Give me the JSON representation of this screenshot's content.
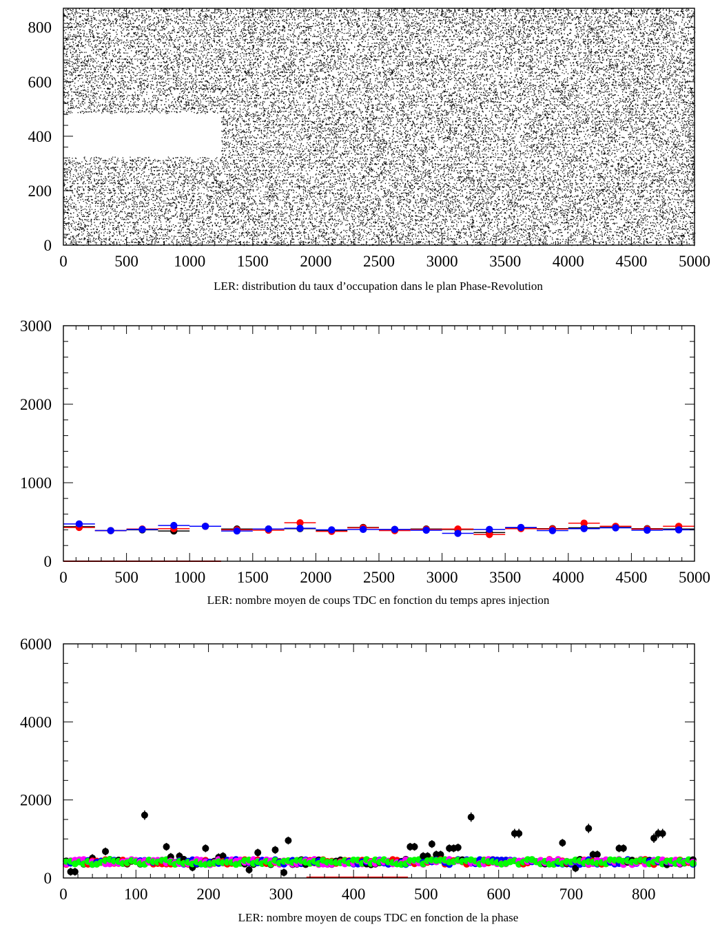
{
  "colors": {
    "black": "#000000",
    "red": "#ff0000",
    "blue": "#0000ff",
    "magenta": "#ff00ff",
    "green": "#00ff00"
  },
  "chart_data": [
    {
      "type": "scatter",
      "title": "LER: distribution du taux d’occupation dans le plan Phase-Revolution",
      "xlim": [
        0,
        5000
      ],
      "ylim": [
        0,
        870
      ],
      "xticks": [
        "0",
        "500",
        "1000",
        "1500",
        "2000",
        "2500",
        "3000",
        "3500",
        "4000",
        "4500",
        "5000"
      ],
      "yticks": [
        "0",
        "200",
        "400",
        "600",
        "800"
      ],
      "density": "dense uniform random points covering the whole plane",
      "empty_region": {
        "x": [
          0,
          1250
        ],
        "y": [
          325,
          485
        ]
      }
    },
    {
      "type": "scatter",
      "title": "LER: nombre moyen de coups TDC en fonction du temps apres injection",
      "xlim": [
        0,
        5000
      ],
      "ylim": [
        0,
        3000
      ],
      "xticks": [
        "0",
        "500",
        "1000",
        "1500",
        "2000",
        "2500",
        "3000",
        "3500",
        "4000",
        "4500",
        "5000"
      ],
      "yticks": [
        "0",
        "1000",
        "2000",
        "3000"
      ],
      "x": [
        125,
        375,
        625,
        875,
        1125,
        1375,
        1625,
        1875,
        2125,
        2375,
        2625,
        2875,
        3125,
        3375,
        3625,
        3875,
        4125,
        4375,
        4625,
        4875
      ],
      "xerr": 125,
      "series": [
        {
          "color": "black",
          "values": [
            440,
            390,
            400,
            385,
            445,
            410,
            410,
            415,
            390,
            430,
            405,
            410,
            405,
            365,
            425,
            415,
            425,
            440,
            415,
            410
          ]
        },
        {
          "color": "red",
          "values": [
            430,
            390,
            410,
            415,
            445,
            400,
            395,
            490,
            380,
            425,
            390,
            405,
            410,
            340,
            415,
            410,
            485,
            445,
            410,
            445
          ]
        },
        {
          "color": "blue",
          "values": [
            475,
            390,
            405,
            455,
            445,
            385,
            410,
            420,
            400,
            405,
            405,
            395,
            355,
            405,
            430,
            390,
            415,
            425,
            395,
            400
          ]
        }
      ],
      "baseline_segment": {
        "color": "red",
        "x": [
          0,
          1250
        ],
        "y": 0
      }
    },
    {
      "type": "scatter",
      "title": "LER: nombre moyen de coups TDC en fonction de la phase",
      "xlim": [
        0,
        870
      ],
      "ylim": [
        0,
        6000
      ],
      "xticks": [
        "0",
        "100",
        "200",
        "300",
        "400",
        "500",
        "600",
        "700",
        "800"
      ],
      "yticks": [
        "0",
        "2000",
        "4000",
        "6000"
      ],
      "bin_width": 6,
      "series_colors": [
        "black",
        "red",
        "blue",
        "magenta",
        "green"
      ],
      "typical_level": 410,
      "baseline_segment": {
        "color": "red",
        "x": [
          335,
          475
        ],
        "y": 0
      },
      "black_outliers": [
        {
          "x": 13,
          "y": 160
        },
        {
          "x": 22,
          "y": 430
        },
        {
          "x": 41,
          "y": 510
        },
        {
          "x": 59,
          "y": 680
        },
        {
          "x": 112,
          "y": 1610
        },
        {
          "x": 140,
          "y": 800
        },
        {
          "x": 149,
          "y": 540
        },
        {
          "x": 158,
          "y": 560
        },
        {
          "x": 176,
          "y": 270
        },
        {
          "x": 194,
          "y": 760
        },
        {
          "x": 212,
          "y": 530
        },
        {
          "x": 221,
          "y": 560
        },
        {
          "x": 257,
          "y": 210
        },
        {
          "x": 266,
          "y": 650
        },
        {
          "x": 293,
          "y": 720
        },
        {
          "x": 302,
          "y": 140
        },
        {
          "x": 311,
          "y": 960
        },
        {
          "x": 481,
          "y": 800
        },
        {
          "x": 499,
          "y": 560
        },
        {
          "x": 508,
          "y": 870
        },
        {
          "x": 517,
          "y": 600
        },
        {
          "x": 535,
          "y": 760
        },
        {
          "x": 544,
          "y": 780
        },
        {
          "x": 562,
          "y": 1560
        },
        {
          "x": 625,
          "y": 1140
        },
        {
          "x": 688,
          "y": 900
        },
        {
          "x": 706,
          "y": 250
        },
        {
          "x": 724,
          "y": 1270
        },
        {
          "x": 733,
          "y": 600
        },
        {
          "x": 769,
          "y": 760
        },
        {
          "x": 814,
          "y": 1020
        },
        {
          "x": 823,
          "y": 1140
        }
      ]
    }
  ]
}
